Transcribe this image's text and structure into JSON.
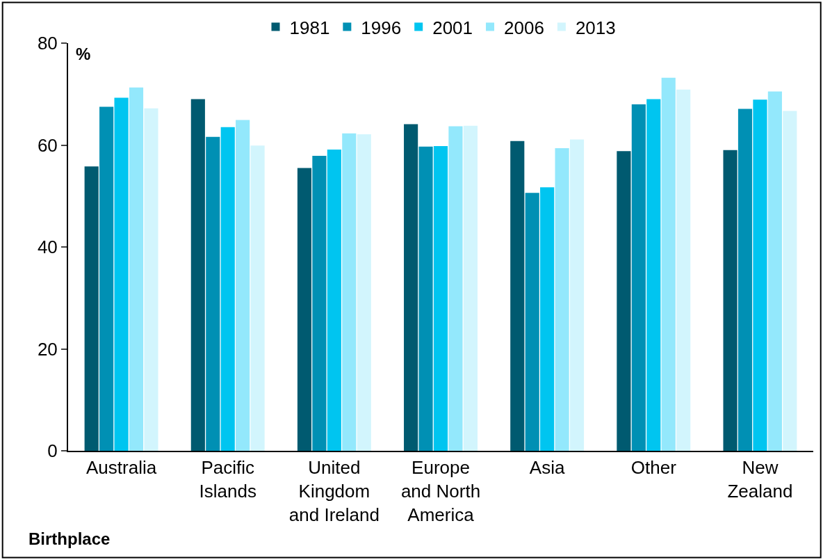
{
  "chart_data": {
    "type": "bar",
    "categories": [
      "Australia",
      "Pacific\nIslands",
      "United\nKingdom\nand Ireland",
      "Europe\nand North\nAmerica",
      "Asia",
      "Other",
      "New\nZealand"
    ],
    "series": [
      {
        "name": "1981",
        "color": "#005a70",
        "values": [
          55.8,
          69.0,
          55.5,
          64.1,
          60.8,
          58.8,
          59.0
        ]
      },
      {
        "name": "1996",
        "color": "#0090b4",
        "values": [
          67.5,
          61.6,
          57.9,
          59.7,
          50.6,
          68.0,
          67.1
        ]
      },
      {
        "name": "2001",
        "color": "#00c5f0",
        "values": [
          69.3,
          63.5,
          59.1,
          59.8,
          51.7,
          69.0,
          68.9
        ]
      },
      {
        "name": "2006",
        "color": "#93e8fc",
        "values": [
          71.3,
          64.9,
          62.3,
          63.7,
          59.4,
          73.2,
          70.5
        ]
      },
      {
        "name": "2013",
        "color": "#d2f5fd",
        "values": [
          67.2,
          59.9,
          62.1,
          63.8,
          61.1,
          70.9,
          66.7
        ]
      }
    ],
    "ylabel": "%",
    "xlabel": "Birthplace",
    "ylim": [
      0,
      80
    ],
    "yticks": [
      0,
      20,
      40,
      60,
      80
    ],
    "legend": "top"
  }
}
